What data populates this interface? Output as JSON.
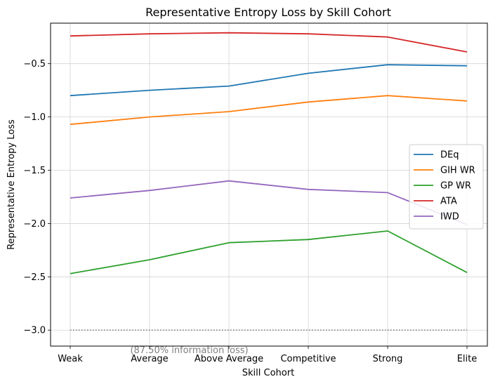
{
  "chart_data": {
    "type": "line",
    "title": "Representative Entropy Loss by Skill Cohort",
    "xlabel": "Skill Cohort",
    "ylabel": "Representative Entropy Loss",
    "categories": [
      "Weak",
      "Average",
      "Above Average",
      "Competitive",
      "Strong",
      "Elite"
    ],
    "ylim": [
      -3.15,
      -0.12
    ],
    "yticks": [
      -3.0,
      -2.5,
      -2.0,
      -1.5,
      -1.0,
      -0.5
    ],
    "ytick_labels": [
      "−3.0",
      "−2.5",
      "−2.0",
      "−1.5",
      "−1.0",
      "−0.5"
    ],
    "grid": true,
    "legend_position": "center-right",
    "series": [
      {
        "name": "DEq",
        "color": "#1f77b4",
        "values": [
          -0.8,
          -0.75,
          -0.71,
          -0.59,
          -0.51,
          -0.52
        ]
      },
      {
        "name": "GIH WR",
        "color": "#ff7f0e",
        "values": [
          -1.07,
          -1.0,
          -0.95,
          -0.86,
          -0.8,
          -0.85
        ]
      },
      {
        "name": "GP WR",
        "color": "#2ca02c",
        "values": [
          -2.47,
          -2.34,
          -2.18,
          -2.15,
          -2.07,
          -2.46
        ]
      },
      {
        "name": "ATA",
        "color": "#d62728",
        "values": [
          -0.24,
          -0.22,
          -0.21,
          -0.22,
          -0.25,
          -0.39
        ]
      },
      {
        "name": "IWD",
        "color": "#9467bd",
        "values": [
          -1.76,
          -1.69,
          -1.6,
          -1.68,
          -1.71,
          -2.01
        ]
      }
    ],
    "reference_line": {
      "y": -3.0,
      "style": "dotted",
      "color": "#808080",
      "label": "(87.50% information loss)"
    }
  }
}
